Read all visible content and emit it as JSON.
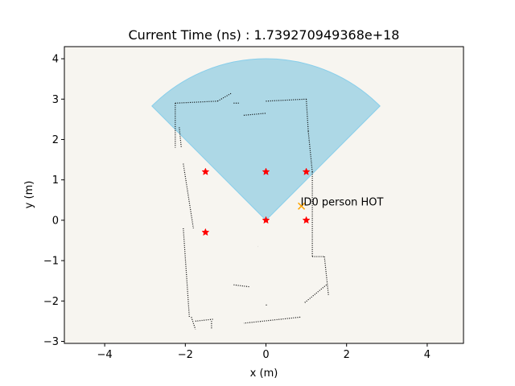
{
  "chart_data": {
    "type": "scatter",
    "title": "Current Time (ns) : 1.739270949368e+18",
    "xlabel": "x (m)",
    "ylabel": "y (m)",
    "xlim": [
      -5,
      4.9
    ],
    "ylim": [
      -3.05,
      4.3
    ],
    "xticks": [
      -4,
      -2,
      0,
      2,
      4
    ],
    "yticks": [
      -3,
      -2,
      -1,
      0,
      1,
      2,
      3,
      4
    ],
    "grid": false,
    "colors": {
      "background": "#f7f5f0",
      "fov_fill": "#add8e6",
      "fov_edge": "#87ceeb",
      "waypoint": "#ff0000",
      "person_marker": "#ffa500",
      "wall_points": "#000000"
    },
    "fov_sector": {
      "apex": [
        0,
        0
      ],
      "radius": 4.0,
      "start_angle_deg": 45,
      "end_angle_deg": 135
    },
    "waypoints": {
      "marker": "star",
      "points": [
        {
          "x": -1.5,
          "y": 1.2
        },
        {
          "x": 0.0,
          "y": 1.2
        },
        {
          "x": 1.0,
          "y": 1.2
        },
        {
          "x": 0.0,
          "y": 0.0
        },
        {
          "x": 1.0,
          "y": 0.0
        },
        {
          "x": -1.5,
          "y": -0.3
        }
      ]
    },
    "person": {
      "marker": "x",
      "x": 0.88,
      "y": 0.35,
      "label": "ID0 person HOT"
    },
    "wall_segments": [
      {
        "x0": -2.25,
        "y0": 2.9,
        "x1": -2.25,
        "y1": 1.8
      },
      {
        "x0": -2.25,
        "y0": 2.9,
        "x1": -1.2,
        "y1": 2.95
      },
      {
        "x0": -1.2,
        "y0": 2.95,
        "x1": -0.85,
        "y1": 3.15
      },
      {
        "x0": -0.8,
        "y0": 2.9,
        "x1": -0.65,
        "y1": 2.9
      },
      {
        "x0": -0.55,
        "y0": 2.6,
        "x1": 0.0,
        "y1": 2.65
      },
      {
        "x0": 0.0,
        "y0": 2.95,
        "x1": 1.0,
        "y1": 3.0
      },
      {
        "x0": 1.0,
        "y0": 3.0,
        "x1": 1.05,
        "y1": 2.2
      },
      {
        "x0": 1.05,
        "y0": 2.2,
        "x1": 1.15,
        "y1": 1.2
      },
      {
        "x0": 1.15,
        "y0": 1.2,
        "x1": 1.15,
        "y1": -0.9
      },
      {
        "x0": 1.15,
        "y0": -0.9,
        "x1": 1.45,
        "y1": -0.9
      },
      {
        "x0": 1.45,
        "y0": -0.9,
        "x1": 1.55,
        "y1": -1.85
      },
      {
        "x0": 1.5,
        "y0": -1.6,
        "x1": 0.95,
        "y1": -2.05
      },
      {
        "x0": 0.85,
        "y0": -2.4,
        "x1": -0.55,
        "y1": -2.55
      },
      {
        "x0": -0.8,
        "y0": -1.6,
        "x1": -0.4,
        "y1": -1.65
      },
      {
        "x0": -2.05,
        "y0": 1.4,
        "x1": -1.8,
        "y1": -0.2
      },
      {
        "x0": -2.05,
        "y0": -0.2,
        "x1": -1.9,
        "y1": -2.4
      },
      {
        "x0": -1.85,
        "y0": -2.4,
        "x1": -1.75,
        "y1": -2.7
      },
      {
        "x0": -1.75,
        "y0": -2.5,
        "x1": -1.3,
        "y1": -2.45
      },
      {
        "x0": -1.35,
        "y0": -2.5,
        "x1": -1.35,
        "y1": -2.7
      },
      {
        "x0": -2.15,
        "y0": 2.3,
        "x1": -2.1,
        "y1": 1.8
      },
      {
        "x0": 0.0,
        "y0": -2.1,
        "x1": 0.05,
        "y1": -2.1
      },
      {
        "x0": -0.2,
        "y0": -0.65,
        "x1": -0.2,
        "y1": -0.65
      }
    ]
  }
}
